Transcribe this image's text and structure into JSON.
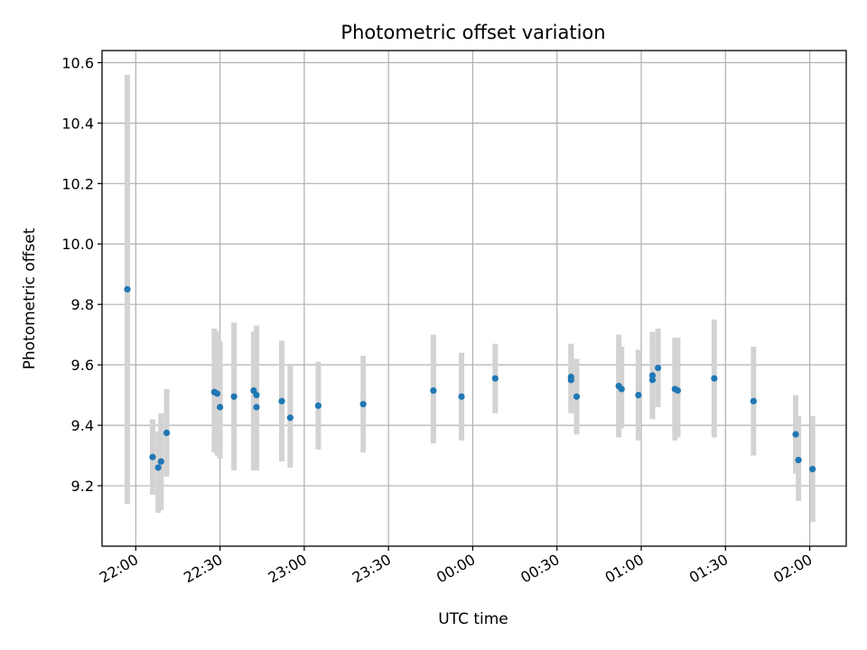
{
  "chart_data": {
    "type": "scatter",
    "title": "Photometric offset variation",
    "xlabel": "UTC time",
    "ylabel": "Photometric offset",
    "grid": true,
    "x_axis": {
      "kind": "time",
      "start": "2023-01-01T21:48",
      "end": "2023-01-02T02:13",
      "ticks": [
        {
          "t": "2023-01-01T22:00",
          "label": "22:00"
        },
        {
          "t": "2023-01-01T22:30",
          "label": "22:30"
        },
        {
          "t": "2023-01-01T23:00",
          "label": "23:00"
        },
        {
          "t": "2023-01-01T23:30",
          "label": "23:30"
        },
        {
          "t": "2023-01-02T00:00",
          "label": "00:00"
        },
        {
          "t": "2023-01-02T00:30",
          "label": "00:30"
        },
        {
          "t": "2023-01-02T01:00",
          "label": "01:00"
        },
        {
          "t": "2023-01-02T01:30",
          "label": "01:30"
        },
        {
          "t": "2023-01-02T02:00",
          "label": "02:00"
        }
      ]
    },
    "y_axis": {
      "ylim": [
        9.0,
        10.64
      ],
      "ticks": [
        9.2,
        9.4,
        9.6,
        9.8,
        10.0,
        10.2,
        10.4,
        10.6
      ],
      "tick_labels": [
        "9.2",
        "9.4",
        "9.6",
        "9.8",
        "10.0",
        "10.2",
        "10.4",
        "10.6"
      ]
    },
    "marker_color": "#1f77b4",
    "errorbar_color": "#d3d3d3",
    "points": [
      {
        "t": "2023-01-01T21:57",
        "y": 9.85,
        "err_low": 9.14,
        "err_high": 10.56
      },
      {
        "t": "2023-01-01T22:06",
        "y": 9.295,
        "err_low": 9.17,
        "err_high": 9.42
      },
      {
        "t": "2023-01-01T22:08",
        "y": 9.26,
        "err_low": 9.11,
        "err_high": 9.38
      },
      {
        "t": "2023-01-01T22:09",
        "y": 9.28,
        "err_low": 9.12,
        "err_high": 9.44
      },
      {
        "t": "2023-01-01T22:11",
        "y": 9.375,
        "err_low": 9.23,
        "err_high": 9.52
      },
      {
        "t": "2023-01-01T22:28",
        "y": 9.51,
        "err_low": 9.31,
        "err_high": 9.72
      },
      {
        "t": "2023-01-01T22:29",
        "y": 9.505,
        "err_low": 9.3,
        "err_high": 9.71
      },
      {
        "t": "2023-01-01T22:30",
        "y": 9.46,
        "err_low": 9.29,
        "err_high": 9.68
      },
      {
        "t": "2023-01-01T22:35",
        "y": 9.495,
        "err_low": 9.25,
        "err_high": 9.74
      },
      {
        "t": "2023-01-01T22:42",
        "y": 9.515,
        "err_low": 9.25,
        "err_high": 9.71
      },
      {
        "t": "2023-01-01T22:43",
        "y": 9.46,
        "err_low": 9.25,
        "err_high": 9.68
      },
      {
        "t": "2023-01-01T22:43",
        "y": 9.5,
        "err_low": 9.28,
        "err_high": 9.73
      },
      {
        "t": "2023-01-01T22:52",
        "y": 9.48,
        "err_low": 9.28,
        "err_high": 9.68
      },
      {
        "t": "2023-01-01T22:55",
        "y": 9.425,
        "err_low": 9.26,
        "err_high": 9.6
      },
      {
        "t": "2023-01-01T23:05",
        "y": 9.465,
        "err_low": 9.32,
        "err_high": 9.61
      },
      {
        "t": "2023-01-01T23:21",
        "y": 9.47,
        "err_low": 9.31,
        "err_high": 9.63
      },
      {
        "t": "2023-01-01T23:46",
        "y": 9.515,
        "err_low": 9.34,
        "err_high": 9.7
      },
      {
        "t": "2023-01-01T23:56",
        "y": 9.495,
        "err_low": 9.35,
        "err_high": 9.64
      },
      {
        "t": "2023-01-02T00:08",
        "y": 9.555,
        "err_low": 9.44,
        "err_high": 9.67
      },
      {
        "t": "2023-01-02T00:35",
        "y": 9.56,
        "err_low": 9.44,
        "err_high": 9.67
      },
      {
        "t": "2023-01-02T00:35",
        "y": 9.55,
        "err_low": 9.45,
        "err_high": 9.66
      },
      {
        "t": "2023-01-02T00:37",
        "y": 9.495,
        "err_low": 9.37,
        "err_high": 9.62
      },
      {
        "t": "2023-01-02T00:52",
        "y": 9.53,
        "err_low": 9.36,
        "err_high": 9.7
      },
      {
        "t": "2023-01-02T00:53",
        "y": 9.52,
        "err_low": 9.39,
        "err_high": 9.66
      },
      {
        "t": "2023-01-02T00:59",
        "y": 9.5,
        "err_low": 9.35,
        "err_high": 9.65
      },
      {
        "t": "2023-01-02T01:04",
        "y": 9.565,
        "err_low": 9.42,
        "err_high": 9.71
      },
      {
        "t": "2023-01-02T01:04",
        "y": 9.55,
        "err_low": 9.43,
        "err_high": 9.68
      },
      {
        "t": "2023-01-02T01:06",
        "y": 9.59,
        "err_low": 9.46,
        "err_high": 9.72
      },
      {
        "t": "2023-01-02T01:12",
        "y": 9.52,
        "err_low": 9.35,
        "err_high": 9.69
      },
      {
        "t": "2023-01-02T01:13",
        "y": 9.515,
        "err_low": 9.36,
        "err_high": 9.69
      },
      {
        "t": "2023-01-02T01:26",
        "y": 9.555,
        "err_low": 9.36,
        "err_high": 9.75
      },
      {
        "t": "2023-01-02T01:40",
        "y": 9.48,
        "err_low": 9.3,
        "err_high": 9.66
      },
      {
        "t": "2023-01-02T01:55",
        "y": 9.37,
        "err_low": 9.24,
        "err_high": 9.5
      },
      {
        "t": "2023-01-02T01:56",
        "y": 9.285,
        "err_low": 9.15,
        "err_high": 9.43
      },
      {
        "t": "2023-01-02T02:01",
        "y": 9.255,
        "err_low": 9.08,
        "err_high": 9.43
      }
    ]
  }
}
